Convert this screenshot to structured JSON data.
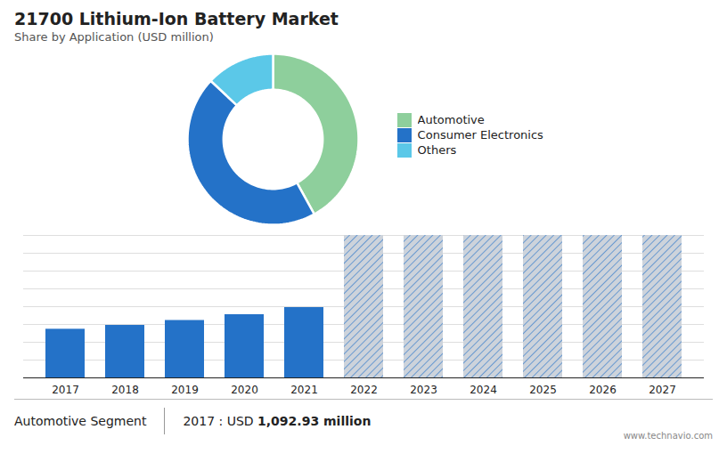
{
  "chart_data": [
    {
      "type": "donut",
      "title": "21700 Lithium-Ion Battery Market",
      "subtitle": "Share by Application (USD million)",
      "categories": [
        "Automotive",
        "Consumer Electronics",
        "Others"
      ],
      "values": [
        42,
        45,
        13
      ],
      "colors": [
        "#8ecf9c",
        "#2472c8",
        "#5bc8e8"
      ],
      "legend": "right"
    },
    {
      "type": "bar",
      "categories": [
        "2017",
        "2018",
        "2019",
        "2020",
        "2021",
        "2022",
        "2023",
        "2024",
        "2025",
        "2026",
        "2027"
      ],
      "values": [
        1093,
        1180,
        1290,
        1420,
        1580,
        3200,
        3200,
        3200,
        3200,
        3200,
        3200
      ],
      "color": "#2472c8",
      "colors": [
        "#2472c8",
        "#2472c8",
        "#2472c8",
        "#2472c8",
        "#2472c8",
        "#cdd3db",
        "#cdd3db",
        "#cdd3db",
        "#cdd3db",
        "#cdd3db",
        "#cdd3db"
      ],
      "ylim": [
        0,
        3200
      ],
      "yticks": [
        0,
        400,
        800,
        1200,
        1600,
        2000,
        2400,
        2800,
        3200
      ],
      "grid": true,
      "tick_labels": "x",
      "annotations": [
        "Automotive Segment",
        "2017 : USD ",
        "1,092.93 million",
        "www.technavio.com"
      ]
    }
  ]
}
